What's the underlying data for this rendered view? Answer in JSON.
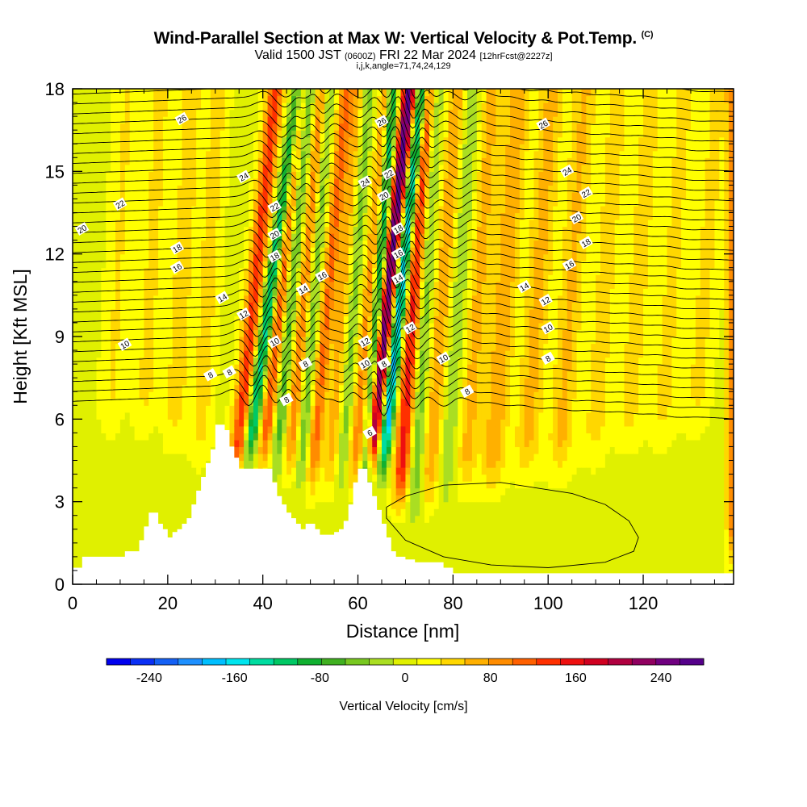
{
  "title": {
    "line1": "Wind-Parallel Section at Max W: Vertical Velocity & Pot.Temp.",
    "copyright": "(C)",
    "line2_a": "Valid 1500 JST",
    "line2_b": "(0600Z)",
    "line2_c": "FRI 22 Mar 2024",
    "line2_d": "[12hrFcst@2227z]",
    "line3": "i,j,k,angle=71,74,24,129"
  },
  "chart_data": {
    "type": "heatmap",
    "xlabel": "Distance [nm]",
    "ylabel": "Height [Kft MSL]",
    "xlim": [
      0,
      139
    ],
    "ylim": [
      0,
      18
    ],
    "xticks": [
      0,
      20,
      40,
      60,
      80,
      100,
      120
    ],
    "yticks": [
      0,
      3,
      6,
      9,
      12,
      15,
      18
    ],
    "colorbar": {
      "label": "Vertical Velocity [cm/s]",
      "ticks": [
        -240,
        -160,
        -80,
        0,
        80,
        160,
        240
      ],
      "min": -280,
      "max": 280,
      "colors": [
        "#0000ee",
        "#0a2ff5",
        "#1460f5",
        "#1e90ff",
        "#00bfff",
        "#00e5ee",
        "#00dca0",
        "#00c864",
        "#10b030",
        "#40b020",
        "#78c820",
        "#aade22",
        "#e0f000",
        "#ffff00",
        "#ffd700",
        "#ffb000",
        "#ff8c00",
        "#ff6000",
        "#ff3000",
        "#ee1010",
        "#d00020",
        "#b00040",
        "#900060",
        "#700080",
        "#55008a"
      ]
    },
    "terrain_kft": [
      [
        0,
        0.6
      ],
      [
        1,
        0.6
      ],
      [
        2,
        1.0
      ],
      [
        6,
        1.0
      ],
      [
        9,
        1.0
      ],
      [
        11,
        1.2
      ],
      [
        14,
        1.6
      ],
      [
        15,
        2.1
      ],
      [
        16,
        2.6
      ],
      [
        17,
        2.6
      ],
      [
        18,
        2.2
      ],
      [
        19,
        2.0
      ],
      [
        20,
        1.7
      ],
      [
        21,
        1.9
      ],
      [
        22,
        2.0
      ],
      [
        23,
        2.2
      ],
      [
        24,
        2.4
      ],
      [
        25,
        2.9
      ],
      [
        26,
        3.4
      ],
      [
        27,
        3.9
      ],
      [
        28,
        4.4
      ],
      [
        29,
        4.9
      ],
      [
        30,
        5.8
      ],
      [
        31,
        5.8
      ],
      [
        32,
        5.6
      ],
      [
        33,
        5.0
      ],
      [
        34,
        4.6
      ],
      [
        35,
        4.2
      ],
      [
        41,
        4.2
      ],
      [
        42,
        3.7
      ],
      [
        43,
        3.2
      ],
      [
        44,
        2.9
      ],
      [
        45,
        2.6
      ],
      [
        46,
        2.4
      ],
      [
        47,
        2.2
      ],
      [
        48,
        2.0
      ],
      [
        49,
        2.2
      ],
      [
        50,
        2.2
      ],
      [
        51,
        2.0
      ],
      [
        52,
        1.8
      ],
      [
        53,
        1.8
      ],
      [
        55,
        1.9
      ],
      [
        56,
        2.0
      ],
      [
        57,
        2.3
      ],
      [
        58,
        2.9
      ],
      [
        59,
        3.7
      ],
      [
        60,
        4.2
      ],
      [
        61,
        4.2
      ],
      [
        62,
        3.7
      ],
      [
        63,
        3.2
      ],
      [
        64,
        2.7
      ],
      [
        65,
        2.2
      ],
      [
        66,
        1.7
      ],
      [
        67,
        1.2
      ],
      [
        68,
        1.0
      ],
      [
        70,
        0.9
      ],
      [
        72,
        0.8
      ],
      [
        78,
        0.6
      ],
      [
        80,
        0.4
      ],
      [
        139,
        0.4
      ]
    ],
    "contour_labels": [
      {
        "text": "26",
        "x": 23,
        "y": 16.9
      },
      {
        "text": "24",
        "x": 36,
        "y": 14.8
      },
      {
        "text": "22",
        "x": 10,
        "y": 13.8
      },
      {
        "text": "20",
        "x": 2,
        "y": 12.9
      },
      {
        "text": "18",
        "x": 22,
        "y": 12.2
      },
      {
        "text": "16",
        "x": 22,
        "y": 11.5
      },
      {
        "text": "14",
        "x": 31.5,
        "y": 10.4
      },
      {
        "text": "12",
        "x": 36,
        "y": 9.8
      },
      {
        "text": "10",
        "x": 11,
        "y": 8.7
      },
      {
        "text": "8",
        "x": 29,
        "y": 7.6
      },
      {
        "text": "8",
        "x": 33,
        "y": 7.7
      },
      {
        "text": "22",
        "x": 42.5,
        "y": 13.7
      },
      {
        "text": "20",
        "x": 42.5,
        "y": 12.7
      },
      {
        "text": "18",
        "x": 42.5,
        "y": 11.9
      },
      {
        "text": "10",
        "x": 42.5,
        "y": 8.8
      },
      {
        "text": "14",
        "x": 48.5,
        "y": 10.7
      },
      {
        "text": "16",
        "x": 52.5,
        "y": 11.2
      },
      {
        "text": "8",
        "x": 49,
        "y": 8.0
      },
      {
        "text": "8",
        "x": 45,
        "y": 6.7
      },
      {
        "text": "26",
        "x": 65,
        "y": 16.8
      },
      {
        "text": "24",
        "x": 61.5,
        "y": 14.6
      },
      {
        "text": "22",
        "x": 66.5,
        "y": 14.9
      },
      {
        "text": "20",
        "x": 65.5,
        "y": 14.1
      },
      {
        "text": "18",
        "x": 68.5,
        "y": 12.9
      },
      {
        "text": "16",
        "x": 68.5,
        "y": 12.0
      },
      {
        "text": "14",
        "x": 68.5,
        "y": 11.1
      },
      {
        "text": "12",
        "x": 71,
        "y": 9.3
      },
      {
        "text": "12",
        "x": 61.5,
        "y": 8.8
      },
      {
        "text": "10",
        "x": 61.5,
        "y": 8.0
      },
      {
        "text": "8",
        "x": 65.5,
        "y": 8.0
      },
      {
        "text": "6",
        "x": 62.5,
        "y": 5.5
      },
      {
        "text": "10",
        "x": 78,
        "y": 8.2
      },
      {
        "text": "8",
        "x": 83,
        "y": 7.0
      },
      {
        "text": "26",
        "x": 99,
        "y": 16.7
      },
      {
        "text": "24",
        "x": 104,
        "y": 15.0
      },
      {
        "text": "22",
        "x": 108,
        "y": 14.2
      },
      {
        "text": "20",
        "x": 106,
        "y": 13.3
      },
      {
        "text": "18",
        "x": 108,
        "y": 12.4
      },
      {
        "text": "16",
        "x": 104.5,
        "y": 11.6
      },
      {
        "text": "14",
        "x": 95,
        "y": 10.8
      },
      {
        "text": "12",
        "x": 99.5,
        "y": 10.3
      },
      {
        "text": "10",
        "x": 100,
        "y": 9.3
      },
      {
        "text": "8",
        "x": 100,
        "y": 8.2
      }
    ]
  }
}
